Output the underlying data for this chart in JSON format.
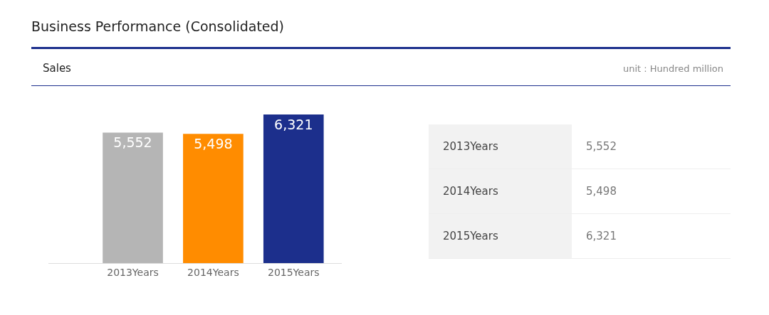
{
  "chart_data": {
    "type": "bar",
    "title": "Business Performance (Consolidated)",
    "subtitle": "Sales",
    "annotations": [
      "unit : Hundred million"
    ],
    "categories": [
      "2013Years",
      "2014Years",
      "2015Years"
    ],
    "values": [
      5552,
      5498,
      6321
    ],
    "colors": [
      "#b5b5b5",
      "#ff8c00",
      "#1c2f8c"
    ],
    "value_labels": [
      "5,552",
      "5,498",
      "6,321"
    ]
  }
}
